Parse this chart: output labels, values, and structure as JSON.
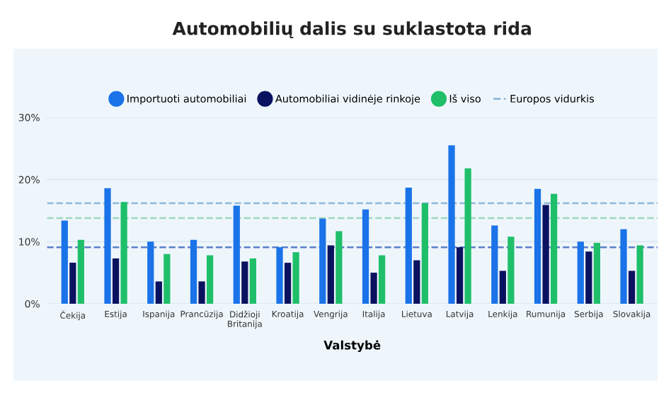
{
  "chart_data": {
    "type": "bar",
    "title": "Automobilių dalis su suklastota rida",
    "xlabel": "Valstybė",
    "categories": [
      "Čekija",
      "Estija",
      "Ispanija",
      "Prancūzija",
      "Didžioji\nBritanija",
      "Kroatija",
      "Vengrija",
      "Italija",
      "Lietuva",
      "Latvija",
      "Lenkija",
      "Rumunija",
      "Serbija",
      "Slovakija"
    ],
    "series": [
      {
        "name": "Importuoti automobiliai",
        "color": "#1a73e8",
        "values": [
          13.4,
          18.6,
          10.0,
          10.3,
          15.8,
          9.1,
          13.7,
          15.2,
          18.7,
          25.5,
          12.6,
          18.5,
          10.0,
          12.0
        ]
      },
      {
        "name": "Automobiliai vidinėje rinkoje",
        "color": "#0a1260",
        "values": [
          6.6,
          7.3,
          3.6,
          3.6,
          6.8,
          6.6,
          9.4,
          5.0,
          7.0,
          9.1,
          5.3,
          15.9,
          8.4,
          5.3
        ]
      },
      {
        "name": "Iš viso",
        "color": "#1fbf6a",
        "values": [
          10.3,
          16.4,
          8.0,
          7.8,
          7.3,
          8.3,
          11.7,
          7.8,
          16.2,
          21.8,
          10.8,
          17.7,
          9.8,
          9.4
        ]
      }
    ],
    "ref_lines": [
      {
        "axis": "y",
        "value": 16.2,
        "label": "Europos vidurkis",
        "color": "#8fb8d8",
        "line_style": "dashed"
      },
      {
        "axis": "y",
        "value": 13.8,
        "color": "#9fd8c0",
        "line_style": "dashed"
      },
      {
        "axis": "y",
        "value": 9.1,
        "color": "#5a7fc8",
        "line_style": "dashed"
      }
    ],
    "ylim": [
      0,
      30
    ],
    "yticks": [
      {
        "value": 0,
        "label": "0%"
      },
      {
        "value": 10,
        "label": "10%"
      },
      {
        "value": 20,
        "label": "20%"
      },
      {
        "value": 30,
        "label": "30%"
      }
    ],
    "grid": "y",
    "legend": "top"
  }
}
